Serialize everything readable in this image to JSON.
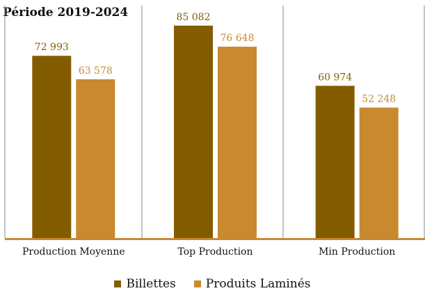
{
  "chart_data": {
    "type": "bar",
    "title": "Période 2019-2024",
    "categories": [
      "Production Moyenne",
      "Top Production",
      "Min Production"
    ],
    "series": [
      {
        "name": "Billettes",
        "values": [
          72993,
          85082,
          60974
        ],
        "labels": [
          "72 993",
          "85 082",
          "60 974"
        ]
      },
      {
        "name": "Produits Laminés",
        "values": [
          63578,
          76648,
          52248
        ],
        "labels": [
          "63 578",
          "76 648",
          "52 248"
        ]
      }
    ],
    "colors": [
      "#845c00",
      "#c8892f"
    ],
    "axis_color": "#c8892f",
    "ylim": [
      0,
      92000
    ],
    "grid": false,
    "category_dividers": true,
    "legend": "bottom"
  }
}
